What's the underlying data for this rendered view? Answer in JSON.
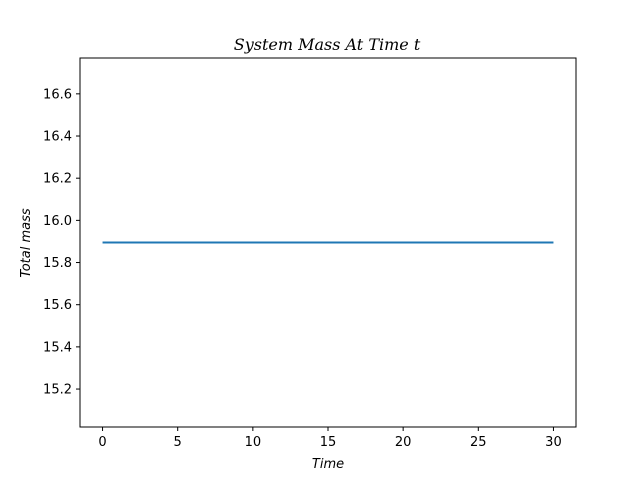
{
  "chart_data": {
    "type": "line",
    "title": "System Mass At Time t",
    "xlabel": "Time",
    "ylabel": "Total mass",
    "xlim": [
      -1.5,
      31.5
    ],
    "ylim": [
      15.02,
      16.77
    ],
    "xticks": [
      0,
      5,
      10,
      15,
      20,
      25,
      30
    ],
    "yticks": [
      15.2,
      15.4,
      15.6,
      15.8,
      16.0,
      16.2,
      16.4,
      16.6
    ],
    "xtick_labels": [
      "0",
      "5",
      "10",
      "15",
      "20",
      "25",
      "30"
    ],
    "ytick_labels": [
      "15.2",
      "15.4",
      "15.6",
      "15.8",
      "16.0",
      "16.2",
      "16.4",
      "16.6"
    ],
    "grid": false,
    "series": [
      {
        "color": "#1f77b4",
        "x": [
          0,
          30
        ],
        "y": [
          15.895,
          15.895
        ]
      }
    ]
  }
}
